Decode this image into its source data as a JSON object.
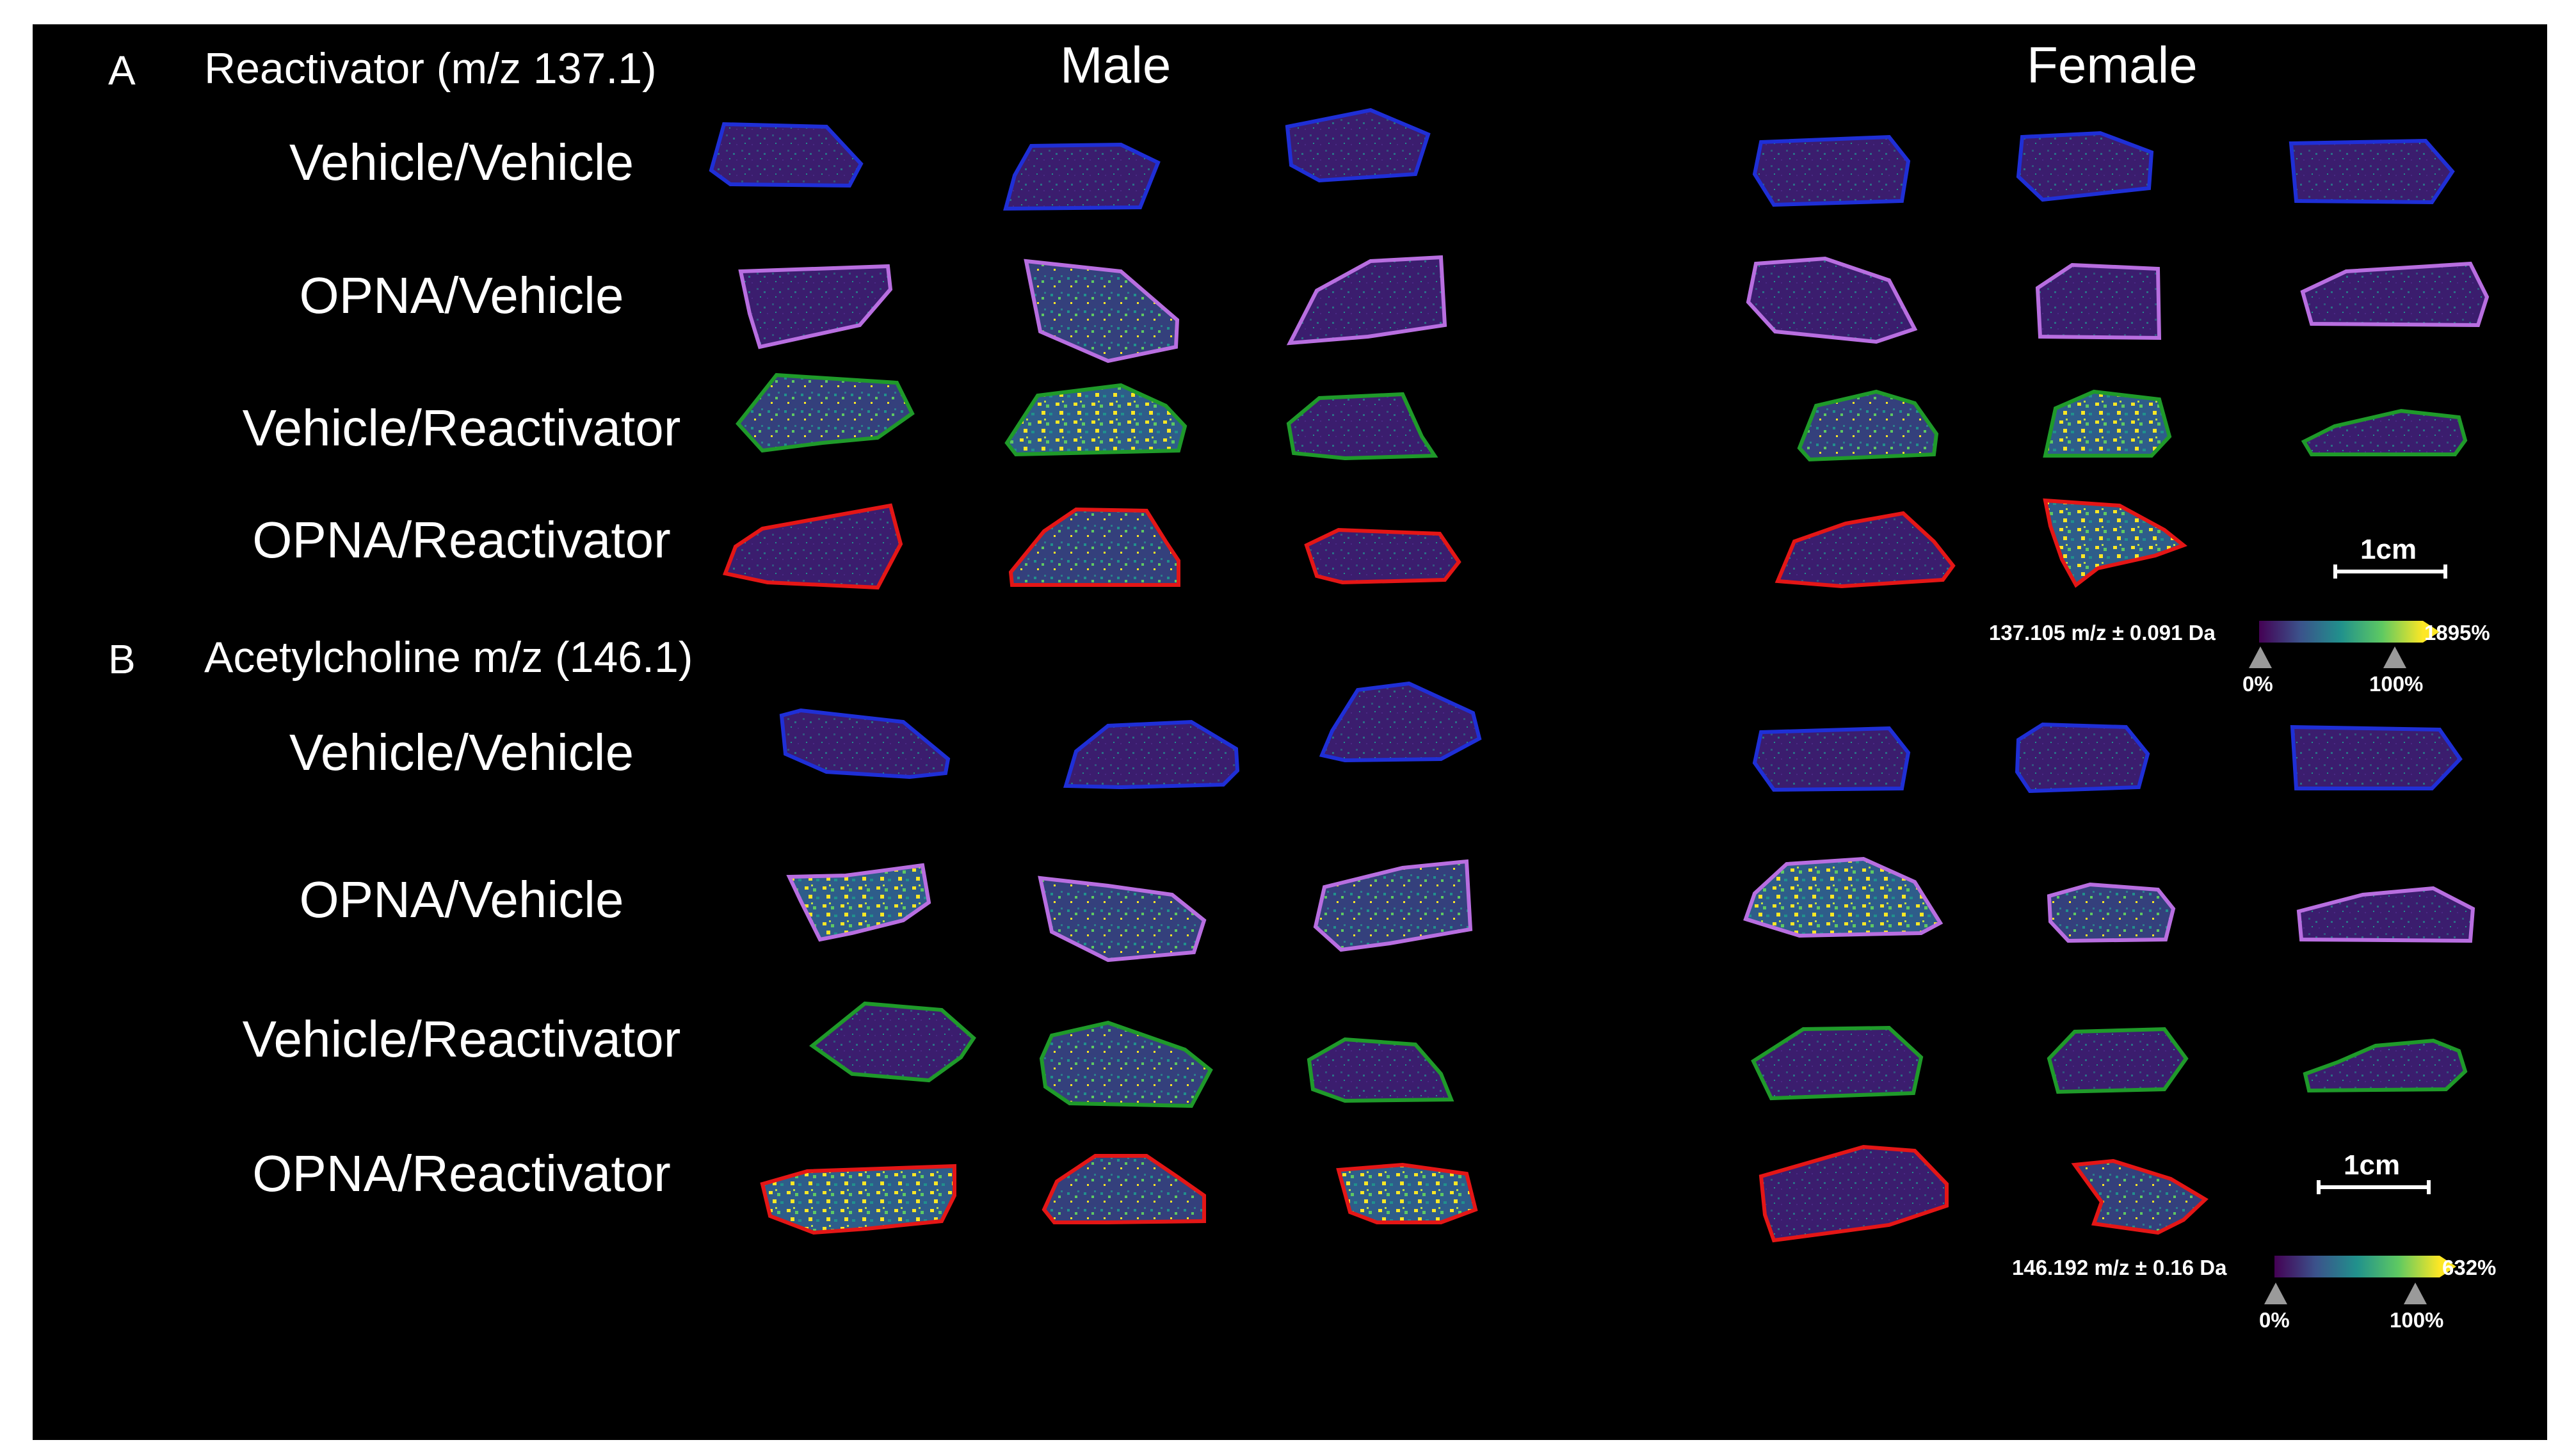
{
  "panels": [
    {
      "letter": "A",
      "title": "Reactivator (m/z 137.1)",
      "row_labels": [
        "Vehicle/Vehicle",
        "OPNA/Vehicle",
        "Vehicle/Reactivator",
        "OPNA/Reactivator"
      ],
      "scale_label": "1cm",
      "colorbar": {
        "label": "137.105 m/z ± 0.091 Da",
        "max_label": "1895%",
        "min_tick": "0%",
        "max_tick": "100%"
      }
    },
    {
      "letter": "B",
      "title": "Acetylcholine m/z (146.1)",
      "row_labels": [
        "Vehicle/Vehicle",
        "OPNA/Vehicle",
        "Vehicle/Reactivator",
        "OPNA/Reactivator"
      ],
      "scale_label": "1cm",
      "colorbar": {
        "label": "146.192 m/z ± 0.16 Da",
        "max_label": "632%",
        "min_tick": "0%",
        "max_tick": "100%"
      }
    }
  ],
  "columns": {
    "male": "Male",
    "female": "Female"
  },
  "colors": {
    "background": "#000000",
    "vehicle_vehicle_outline": "#1f2fd6",
    "opna_vehicle_outline": "#b86ee0",
    "vehicle_reactivator_outline": "#1f9a2a",
    "opna_reactivator_outline": "#e41616",
    "tissue_base": "#3b1d6e",
    "colormap": [
      "#440154",
      "#3b528b",
      "#21918c",
      "#5ec962",
      "#fde725"
    ]
  }
}
